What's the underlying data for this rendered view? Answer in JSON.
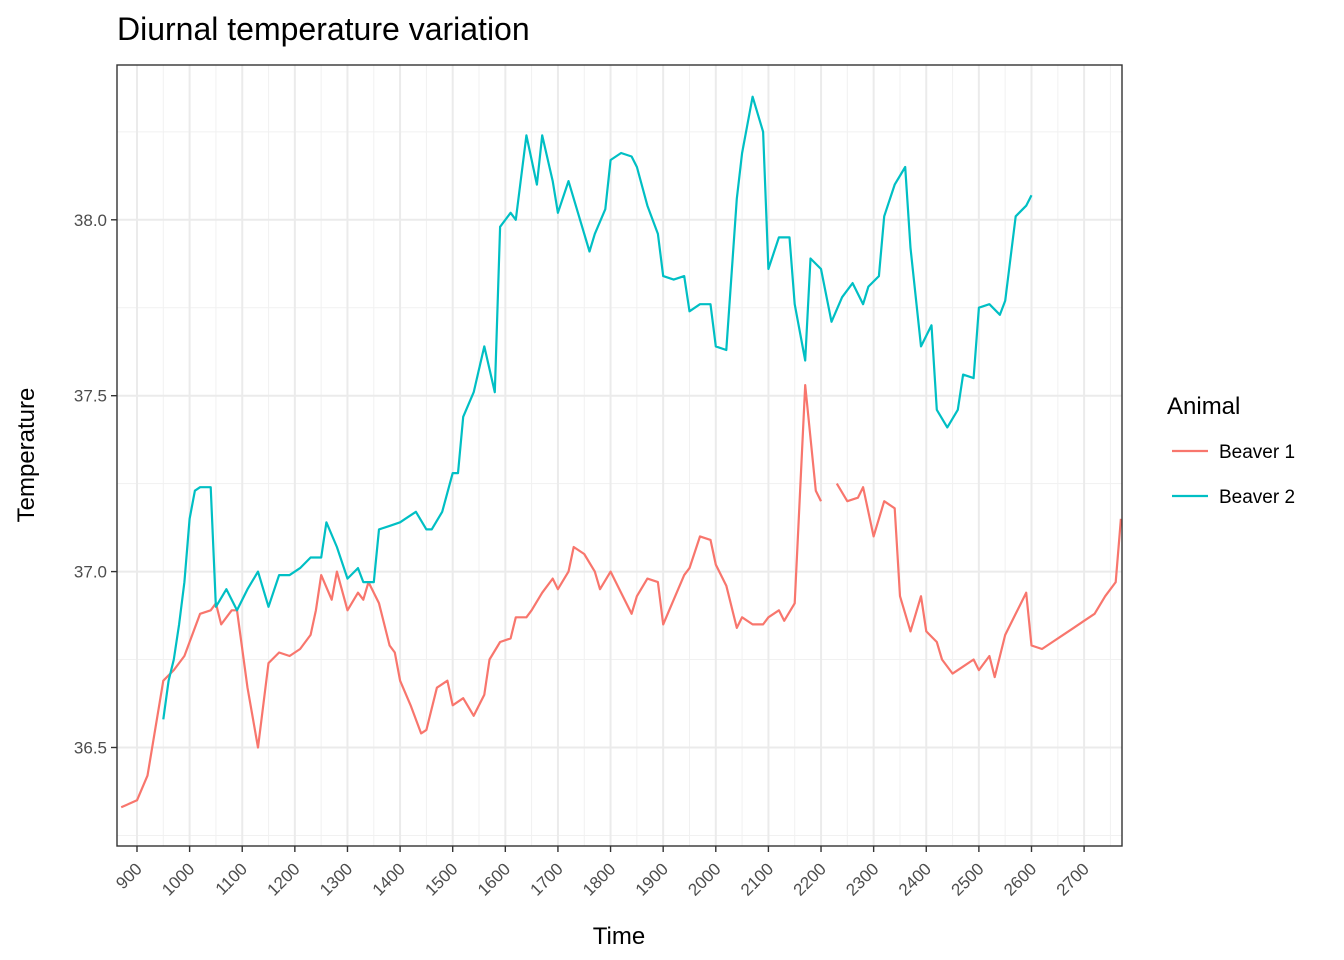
{
  "chart_data": {
    "type": "line",
    "title": "Diurnal temperature variation",
    "xlabel": "Time",
    "ylabel": "Temperature",
    "xlim": [
      862,
      2772
    ],
    "ylim": [
      36.22,
      38.44
    ],
    "x_ticks": [
      900,
      1000,
      1100,
      1200,
      1300,
      1400,
      1500,
      1600,
      1700,
      1800,
      1900,
      2000,
      2100,
      2200,
      2300,
      2400,
      2500,
      2600,
      2700
    ],
    "y_ticks": [
      36.5,
      37.0,
      37.5,
      38.0
    ],
    "y_tick_labels": [
      "36.5",
      "37.0",
      "37.5",
      "38.0"
    ],
    "grid": true,
    "legend": {
      "title": "Animal",
      "position": "right"
    },
    "series": [
      {
        "name": "Beaver 1",
        "color": "#F8766D",
        "segments": [
          [
            [
              870,
              36.33
            ],
            [
              900,
              36.35
            ],
            [
              920,
              36.42
            ],
            [
              950,
              36.69
            ],
            [
              970,
              36.72
            ],
            [
              990,
              36.76
            ],
            [
              1000,
              36.8
            ],
            [
              1020,
              36.88
            ],
            [
              1040,
              36.89
            ],
            [
              1050,
              36.91
            ],
            [
              1060,
              36.85
            ],
            [
              1080,
              36.89
            ],
            [
              1090,
              36.89
            ],
            [
              1110,
              36.67
            ],
            [
              1130,
              36.5
            ],
            [
              1150,
              36.74
            ],
            [
              1170,
              36.77
            ],
            [
              1190,
              36.76
            ],
            [
              1210,
              36.78
            ],
            [
              1230,
              36.82
            ],
            [
              1240,
              36.89
            ],
            [
              1250,
              36.99
            ],
            [
              1270,
              36.92
            ],
            [
              1280,
              37.0
            ],
            [
              1300,
              36.89
            ],
            [
              1320,
              36.94
            ],
            [
              1330,
              36.92
            ],
            [
              1340,
              36.97
            ],
            [
              1360,
              36.91
            ],
            [
              1380,
              36.79
            ],
            [
              1390,
              36.77
            ],
            [
              1400,
              36.69
            ],
            [
              1420,
              36.62
            ],
            [
              1440,
              36.54
            ],
            [
              1450,
              36.55
            ],
            [
              1470,
              36.67
            ],
            [
              1490,
              36.69
            ],
            [
              1500,
              36.62
            ],
            [
              1520,
              36.64
            ],
            [
              1540,
              36.59
            ],
            [
              1560,
              36.65
            ],
            [
              1570,
              36.75
            ],
            [
              1590,
              36.8
            ],
            [
              1610,
              36.81
            ],
            [
              1620,
              36.87
            ],
            [
              1640,
              36.87
            ],
            [
              1650,
              36.89
            ],
            [
              1670,
              36.94
            ],
            [
              1690,
              36.98
            ],
            [
              1700,
              36.95
            ],
            [
              1720,
              37.0
            ],
            [
              1730,
              37.07
            ],
            [
              1750,
              37.05
            ],
            [
              1770,
              37.0
            ],
            [
              1780,
              36.95
            ],
            [
              1800,
              37.0
            ],
            [
              1820,
              36.94
            ],
            [
              1840,
              36.88
            ],
            [
              1850,
              36.93
            ],
            [
              1870,
              36.98
            ],
            [
              1890,
              36.97
            ],
            [
              1900,
              36.85
            ],
            [
              1920,
              36.92
            ],
            [
              1940,
              36.99
            ],
            [
              1950,
              37.01
            ],
            [
              1970,
              37.1
            ],
            [
              1990,
              37.09
            ],
            [
              2000,
              37.02
            ],
            [
              2020,
              36.96
            ],
            [
              2040,
              36.84
            ],
            [
              2050,
              36.87
            ],
            [
              2070,
              36.85
            ],
            [
              2090,
              36.85
            ],
            [
              2100,
              36.87
            ],
            [
              2120,
              36.89
            ],
            [
              2130,
              36.86
            ],
            [
              2150,
              36.91
            ],
            [
              2170,
              37.53
            ],
            [
              2190,
              37.23
            ],
            [
              2200,
              37.2
            ]
          ],
          [
            [
              2230,
              37.25
            ],
            [
              2250,
              37.2
            ],
            [
              2270,
              37.21
            ],
            [
              2280,
              37.24
            ],
            [
              2300,
              37.1
            ],
            [
              2320,
              37.2
            ],
            [
              2340,
              37.18
            ],
            [
              2350,
              36.93
            ],
            [
              2370,
              36.83
            ],
            [
              2390,
              36.93
            ],
            [
              2400,
              36.83
            ],
            [
              2420,
              36.8
            ],
            [
              2430,
              36.75
            ],
            [
              2450,
              36.71
            ],
            [
              2470,
              36.73
            ],
            [
              2490,
              36.75
            ],
            [
              2500,
              36.72
            ],
            [
              2520,
              36.76
            ],
            [
              2530,
              36.7
            ],
            [
              2550,
              36.82
            ],
            [
              2570,
              36.88
            ],
            [
              2590,
              36.94
            ],
            [
              2600,
              36.79
            ],
            [
              2620,
              36.78
            ],
            [
              2640,
              36.8
            ],
            [
              2660,
              36.82
            ],
            [
              2680,
              36.84
            ],
            [
              2700,
              36.86
            ],
            [
              2720,
              36.88
            ],
            [
              2740,
              36.93
            ],
            [
              2760,
              36.97
            ],
            [
              2770,
              37.15
            ]
          ]
        ]
      },
      {
        "name": "Beaver 2",
        "color": "#00BFC4",
        "segments": [
          [
            [
              950,
              36.58
            ],
            [
              960,
              36.69
            ],
            [
              970,
              36.75
            ],
            [
              980,
              36.85
            ],
            [
              990,
              36.97
            ],
            [
              1000,
              37.15
            ],
            [
              1010,
              37.23
            ],
            [
              1020,
              37.24
            ],
            [
              1030,
              37.24
            ],
            [
              1040,
              37.24
            ],
            [
              1050,
              36.9
            ],
            [
              1070,
              36.95
            ],
            [
              1090,
              36.89
            ],
            [
              1110,
              36.95
            ],
            [
              1130,
              37.0
            ],
            [
              1150,
              36.9
            ],
            [
              1170,
              36.99
            ],
            [
              1190,
              36.99
            ],
            [
              1210,
              37.01
            ],
            [
              1230,
              37.04
            ],
            [
              1250,
              37.04
            ],
            [
              1260,
              37.14
            ],
            [
              1280,
              37.07
            ],
            [
              1300,
              36.98
            ],
            [
              1320,
              37.01
            ],
            [
              1330,
              36.97
            ],
            [
              1350,
              36.97
            ],
            [
              1360,
              37.12
            ],
            [
              1380,
              37.13
            ],
            [
              1400,
              37.14
            ],
            [
              1410,
              37.15
            ],
            [
              1430,
              37.17
            ],
            [
              1450,
              37.12
            ],
            [
              1460,
              37.12
            ],
            [
              1480,
              37.17
            ],
            [
              1500,
              37.28
            ],
            [
              1510,
              37.28
            ],
            [
              1520,
              37.44
            ],
            [
              1540,
              37.51
            ],
            [
              1560,
              37.64
            ],
            [
              1580,
              37.51
            ],
            [
              1590,
              37.98
            ],
            [
              1610,
              38.02
            ],
            [
              1620,
              38.0
            ],
            [
              1640,
              38.24
            ],
            [
              1660,
              38.1
            ],
            [
              1670,
              38.24
            ],
            [
              1690,
              38.11
            ],
            [
              1700,
              38.02
            ],
            [
              1720,
              38.11
            ],
            [
              1740,
              38.01
            ],
            [
              1760,
              37.91
            ],
            [
              1770,
              37.96
            ],
            [
              1790,
              38.03
            ],
            [
              1800,
              38.17
            ],
            [
              1820,
              38.19
            ],
            [
              1840,
              38.18
            ],
            [
              1850,
              38.15
            ],
            [
              1870,
              38.04
            ],
            [
              1890,
              37.96
            ],
            [
              1900,
              37.84
            ],
            [
              1920,
              37.83
            ],
            [
              1940,
              37.84
            ],
            [
              1950,
              37.74
            ],
            [
              1970,
              37.76
            ],
            [
              1990,
              37.76
            ],
            [
              2000,
              37.64
            ],
            [
              2020,
              37.63
            ],
            [
              2040,
              38.06
            ],
            [
              2050,
              38.19
            ],
            [
              2070,
              38.35
            ],
            [
              2090,
              38.25
            ],
            [
              2100,
              37.86
            ],
            [
              2120,
              37.95
            ],
            [
              2140,
              37.95
            ],
            [
              2150,
              37.76
            ],
            [
              2170,
              37.6
            ],
            [
              2180,
              37.89
            ],
            [
              2200,
              37.86
            ],
            [
              2220,
              37.71
            ],
            [
              2240,
              37.78
            ],
            [
              2260,
              37.82
            ],
            [
              2280,
              37.76
            ],
            [
              2290,
              37.81
            ],
            [
              2310,
              37.84
            ],
            [
              2320,
              38.01
            ],
            [
              2340,
              38.1
            ],
            [
              2360,
              38.15
            ],
            [
              2370,
              37.92
            ],
            [
              2390,
              37.64
            ],
            [
              2410,
              37.7
            ],
            [
              2420,
              37.46
            ],
            [
              2440,
              37.41
            ],
            [
              2460,
              37.46
            ],
            [
              2470,
              37.56
            ],
            [
              2490,
              37.55
            ],
            [
              2500,
              37.75
            ],
            [
              2520,
              37.76
            ],
            [
              2540,
              37.73
            ],
            [
              2550,
              37.77
            ],
            [
              2570,
              38.01
            ],
            [
              2590,
              38.04
            ],
            [
              2600,
              38.07
            ]
          ]
        ]
      }
    ]
  }
}
